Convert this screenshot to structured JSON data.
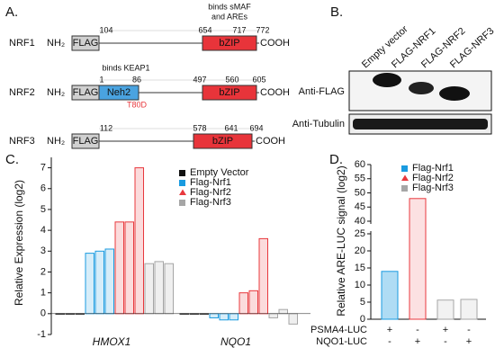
{
  "panel_a": {
    "label": "A.",
    "rows": [
      {
        "name": "NRF1",
        "nh2": "NH₂",
        "flag": "FLAG",
        "positions": [
          104,
          654,
          717,
          772
        ],
        "domain": "bZIP",
        "cooh": "COOH",
        "annotation": [
          "binds sMAF",
          "and AREs"
        ]
      },
      {
        "name": "NRF2",
        "nh2": "NH₂",
        "flag": "FLAG",
        "neh2": "Neh2",
        "positions": [
          1,
          86,
          497,
          560,
          605
        ],
        "domain": "bZIP",
        "cooh": "COOH",
        "annotation": [
          "binds KEAP1"
        ],
        "mutation": "T80D"
      },
      {
        "name": "NRF3",
        "nh2": "NH₂",
        "flag": "FLAG",
        "positions": [
          112,
          578,
          641,
          694
        ],
        "domain": "bZIP",
        "cooh": "COOH"
      }
    ]
  },
  "panel_b": {
    "label": "B.",
    "lanes": [
      "Empty vector",
      "FLAG-NRF1",
      "FLAG-NRF2",
      "FLAG-NRF3"
    ],
    "blots": [
      "Anti-FLAG",
      "Anti-Tubulin"
    ]
  },
  "chart_data": [
    {
      "type": "bar",
      "label": "C.",
      "y_label": "Relative Expression (log2)",
      "categories": [
        "HMOX1",
        "NQO1"
      ],
      "series": [
        {
          "name": "Empty Vector",
          "color": "#111111",
          "values": [
            [
              0,
              0,
              0
            ],
            [
              0,
              0,
              0
            ]
          ]
        },
        {
          "name": "Flag-Nrf1",
          "color": "#1a9be0",
          "values": [
            [
              2.9,
              3.0,
              3.1
            ],
            [
              -0.2,
              -0.3,
              -0.3
            ]
          ]
        },
        {
          "name": "Flag-Nrf2",
          "color": "#e8383d",
          "values": [
            [
              4.4,
              4.4,
              7.0
            ],
            [
              1.0,
              1.1,
              3.6
            ]
          ]
        },
        {
          "name": "Flag-Nrf3",
          "color": "#a6a6a6",
          "values": [
            [
              2.4,
              2.5,
              2.4
            ],
            [
              -0.2,
              0.2,
              -0.5
            ]
          ]
        }
      ],
      "ylim": [
        -1,
        7.5
      ],
      "yticks": [
        -1,
        0,
        1,
        2,
        3,
        4,
        5,
        6,
        7
      ]
    },
    {
      "type": "broken_bar",
      "label": "D.",
      "y_label": "Relative ARE-LUC signal (log2)",
      "series": [
        {
          "name": "Flag-Nrf1",
          "color": "#1a9be0",
          "values": [
            14
          ]
        },
        {
          "name": "Flag-Nrf2",
          "color": "#e8383d",
          "values": [
            48
          ]
        },
        {
          "name": "Flag-Nrf3",
          "color": "#a6a6a6",
          "values": [
            5.6,
            5.8
          ]
        }
      ],
      "ylim": [
        0,
        60
      ],
      "axis_break": [
        25,
        40
      ],
      "yticks": [
        0,
        5,
        10,
        15,
        20,
        25,
        40,
        45,
        50,
        55,
        60
      ],
      "conditions": [
        {
          "name": "PSMA4-LUC",
          "signs": [
            "+",
            "-",
            "+",
            "-"
          ]
        },
        {
          "name": "NQO1-LUC",
          "signs": [
            "-",
            "+",
            "-",
            "+"
          ]
        }
      ]
    }
  ]
}
